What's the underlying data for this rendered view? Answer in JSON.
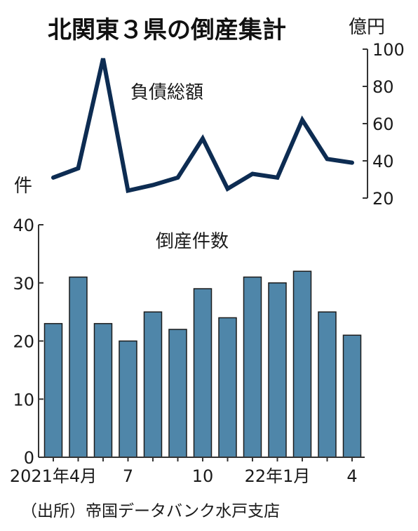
{
  "chart_data": {
    "title": "北関東３県の倒産集計",
    "source": "（出所）帝国データバンク水戸支店",
    "categories": [
      "2021-04",
      "2021-05",
      "2021-06",
      "2021-07",
      "2021-08",
      "2021-09",
      "2021-10",
      "2021-11",
      "2021-12",
      "2022-01",
      "2022-02",
      "2022-03",
      "2022-04"
    ],
    "x_tick_labels": [
      {
        "index": 0,
        "text": "2021年4月"
      },
      {
        "index": 3,
        "text": "7"
      },
      {
        "index": 6,
        "text": "10"
      },
      {
        "index": 9,
        "text": "22年1月"
      },
      {
        "index": 12,
        "text": "4"
      }
    ],
    "line": {
      "type": "line",
      "label": "負債総額",
      "unit": "億円",
      "values": [
        31,
        36,
        95,
        24,
        27,
        31,
        52,
        25,
        33,
        31,
        62,
        41,
        39
      ],
      "ylim": [
        20,
        100
      ],
      "ticks": [
        20,
        40,
        60,
        80,
        100
      ],
      "axis_side": "right",
      "color": "#0d2c52"
    },
    "bars": {
      "type": "bar",
      "label": "倒産件数",
      "unit": "件",
      "values": [
        23,
        31,
        23,
        20,
        25,
        22,
        29,
        24,
        31,
        30,
        32,
        25,
        21
      ],
      "ylim": [
        0,
        40
      ],
      "ticks": [
        0,
        10,
        20,
        30,
        40
      ],
      "axis_side": "left",
      "color": "#4f86a9"
    }
  }
}
